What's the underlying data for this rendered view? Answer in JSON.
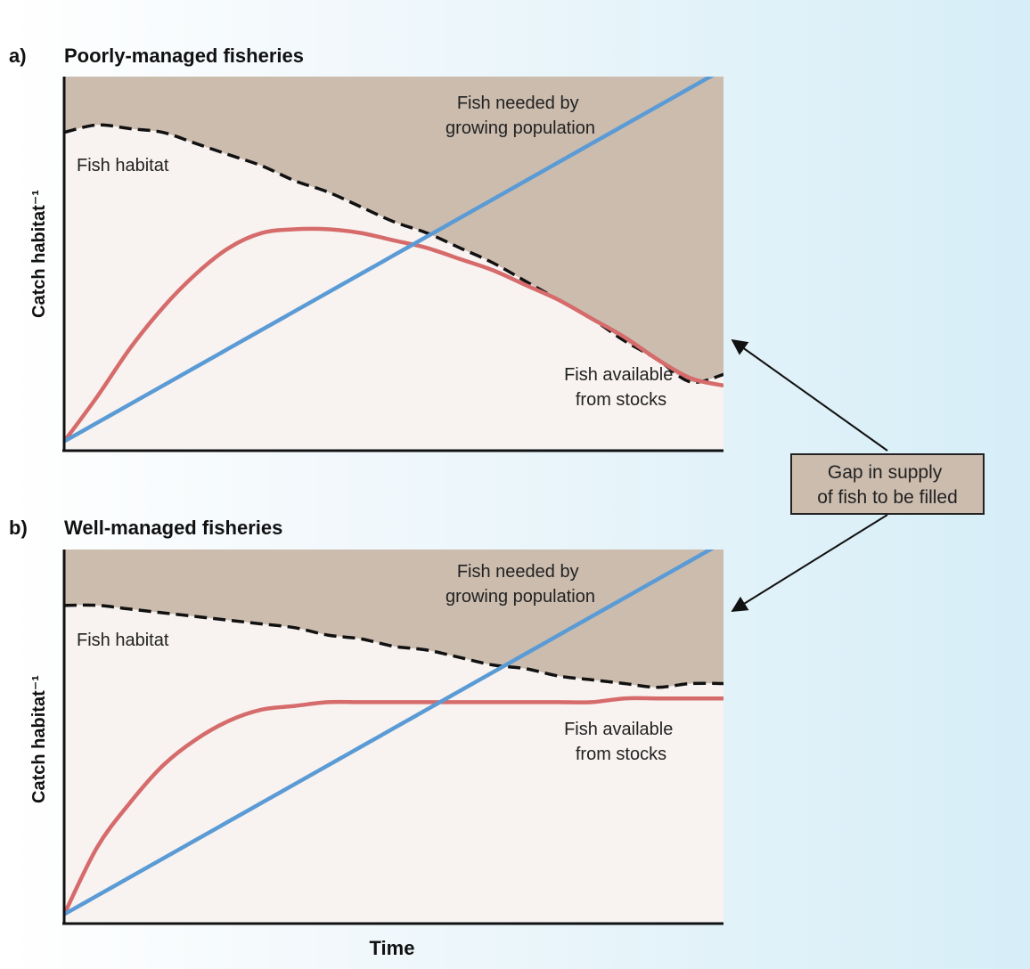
{
  "figure": {
    "callout": {
      "line1": "Gap in supply",
      "line2": "of fish to be filled"
    },
    "xlabel": "Time"
  },
  "colors": {
    "gap_fill": "#cbbcae",
    "plot_background": "#f8f3f1",
    "demand_line": "#5b9bd5",
    "supply_line": "#d66b6b",
    "habitat_line": "#111111"
  },
  "chart_data": [
    {
      "type": "line",
      "panel_label": "a)",
      "title": "Poorly-managed fisheries",
      "xlabel": "",
      "ylabel": "Catch habitat⁻¹",
      "xlim": [
        0,
        1
      ],
      "ylim": [
        0,
        1
      ],
      "grid": false,
      "x": [
        0,
        0.05,
        0.1,
        0.15,
        0.2,
        0.25,
        0.3,
        0.35,
        0.4,
        0.45,
        0.5,
        0.55,
        0.6,
        0.65,
        0.7,
        0.75,
        0.8,
        0.85,
        0.9,
        0.95,
        1.0
      ],
      "series": [
        {
          "key": "habitat",
          "style": "dashed",
          "label_lines": [
            "Fish habitat"
          ],
          "values": [
            0.85,
            0.87,
            0.86,
            0.85,
            0.82,
            0.79,
            0.76,
            0.72,
            0.69,
            0.65,
            0.61,
            0.58,
            0.54,
            0.5,
            0.45,
            0.4,
            0.35,
            0.29,
            0.24,
            0.18,
            0.2
          ]
        },
        {
          "key": "demand",
          "style": "solid",
          "label_lines": [
            "Fish needed by",
            "growing population"
          ],
          "values": [
            0.02,
            0.07,
            0.12,
            0.17,
            0.22,
            0.27,
            0.32,
            0.37,
            0.42,
            0.47,
            0.52,
            0.57,
            0.62,
            0.67,
            0.72,
            0.77,
            0.82,
            0.87,
            0.92,
            0.97,
            1.02
          ]
        },
        {
          "key": "supply",
          "style": "solid",
          "label_lines": [
            "Fish available",
            "from stocks"
          ],
          "values": [
            0.02,
            0.14,
            0.27,
            0.38,
            0.47,
            0.54,
            0.58,
            0.59,
            0.59,
            0.58,
            0.56,
            0.54,
            0.51,
            0.48,
            0.44,
            0.4,
            0.35,
            0.3,
            0.24,
            0.19,
            0.17
          ]
        }
      ]
    },
    {
      "type": "line",
      "panel_label": "b)",
      "title": "Well-managed fisheries",
      "xlabel": "Time",
      "ylabel": "Catch habitat⁻¹",
      "xlim": [
        0,
        1
      ],
      "ylim": [
        0,
        1
      ],
      "grid": false,
      "x": [
        0,
        0.05,
        0.1,
        0.15,
        0.2,
        0.25,
        0.3,
        0.35,
        0.4,
        0.45,
        0.5,
        0.55,
        0.6,
        0.65,
        0.7,
        0.75,
        0.8,
        0.85,
        0.9,
        0.95,
        1.0
      ],
      "series": [
        {
          "key": "habitat",
          "style": "dashed",
          "label_lines": [
            "Fish habitat"
          ],
          "values": [
            0.85,
            0.85,
            0.84,
            0.83,
            0.82,
            0.81,
            0.8,
            0.79,
            0.77,
            0.76,
            0.74,
            0.73,
            0.71,
            0.69,
            0.68,
            0.66,
            0.65,
            0.64,
            0.63,
            0.64,
            0.64
          ]
        },
        {
          "key": "demand",
          "style": "solid",
          "label_lines": [
            "Fish needed by",
            "growing population"
          ],
          "values": [
            0.02,
            0.07,
            0.12,
            0.17,
            0.22,
            0.27,
            0.32,
            0.37,
            0.42,
            0.47,
            0.52,
            0.57,
            0.62,
            0.67,
            0.72,
            0.77,
            0.82,
            0.87,
            0.92,
            0.97,
            1.02
          ]
        },
        {
          "key": "supply",
          "style": "solid",
          "label_lines": [
            "Fish available",
            "from stocks"
          ],
          "values": [
            0.02,
            0.2,
            0.32,
            0.42,
            0.49,
            0.54,
            0.57,
            0.58,
            0.59,
            0.59,
            0.59,
            0.59,
            0.59,
            0.59,
            0.59,
            0.59,
            0.59,
            0.6,
            0.6,
            0.6,
            0.6
          ]
        }
      ]
    }
  ]
}
